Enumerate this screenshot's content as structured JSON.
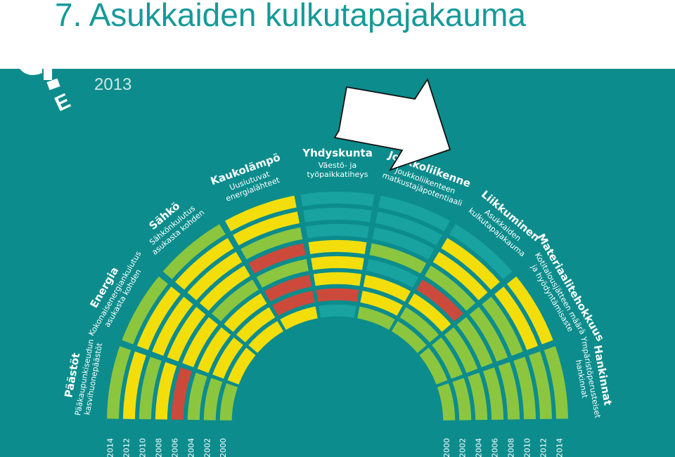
{
  "page": {
    "title": "7. Asukkaiden kulkutapajakauma",
    "logo_year": "2013"
  },
  "colors": {
    "background": "#0c8c8c",
    "track": "#18a3a0",
    "red": "#cc4a3c",
    "yellow": "#f3de0c",
    "lightgreen": "#8cc63f",
    "green": "#6fb14a",
    "title": "#159a98"
  },
  "chart_data": {
    "type": "radial-status",
    "legend": null,
    "years_left": [
      "2014",
      "2012",
      "2010",
      "2008",
      "2006",
      "2004",
      "2002",
      "2000"
    ],
    "years_right": [
      "2000",
      "2002",
      "2004",
      "2006",
      "2008",
      "2010",
      "2012",
      "2014"
    ],
    "rings_outer_to_inner": [
      "2014",
      "2012",
      "2010",
      "2008",
      "2006",
      "2004",
      "2002",
      "2000"
    ],
    "categories": [
      {
        "id": "paastot",
        "title": "Päästöt",
        "sub": [
          "Pääkaupunkiseudun",
          "kasvihuonepäästöt"
        ],
        "status": [
          "green",
          "yellow",
          "green",
          "yellow",
          "red",
          "green",
          "green",
          "green"
        ]
      },
      {
        "id": "energia",
        "title": "Energia",
        "sub": [
          "Kokonaisenergiankulutus",
          "asukasta kohden"
        ],
        "status": [
          "green",
          "yellow",
          "yellow",
          "yellow",
          "yellow",
          "yellow",
          "yellow",
          "yellow"
        ]
      },
      {
        "id": "sahko",
        "title": "Sähkö",
        "sub": [
          "Sähkönkulutus",
          "asukasta kohden"
        ],
        "status": [
          "green",
          "yellow",
          "yellow",
          "yellow",
          "green",
          "yellow",
          "yellow",
          "yellow"
        ]
      },
      {
        "id": "kaukolampo",
        "title": "Kaukolämpö",
        "sub": [
          "Uusiutuvat",
          "energialähteet"
        ],
        "status": [
          "yellow",
          "yellow",
          "green",
          "red",
          "green",
          "red",
          "red",
          "yellow"
        ]
      },
      {
        "id": "yhdyskunta",
        "title": "Yhdyskunta",
        "sub": [
          "Väestö- ja",
          "työpaikkatiheys"
        ],
        "status": [
          "none",
          "none",
          "none",
          "yellow",
          "yellow",
          "yellow",
          "red",
          "none"
        ]
      },
      {
        "id": "joukkoliikenne",
        "title": "Joukkoliikenne",
        "sub": [
          "Joukkoliikenteen",
          "matkustajäpotentiaali"
        ],
        "status": [
          "none",
          "none",
          "none",
          "green",
          "none",
          "yellow",
          "yellow",
          "green"
        ]
      },
      {
        "id": "liikkuminen",
        "title": "Liikkuminen",
        "sub": [
          "Asukkaiden",
          "kulkutapajakauma"
        ],
        "status": [
          "none",
          "yellow",
          "yellow",
          "green",
          "red",
          "yellow",
          "green",
          "green"
        ]
      },
      {
        "id": "materiaali",
        "title": "Materiaalitehokkuus",
        "sub": [
          "Kotitalousjätteen määrä",
          "ja hyödyntämisaste"
        ],
        "status": [
          "yellow",
          "yellow",
          "green",
          "green",
          "green",
          "green",
          "green",
          "green"
        ]
      },
      {
        "id": "hankinnat",
        "title": "Hankinnat",
        "sub": [
          "Ympäristöperusteiset",
          "hankinnat"
        ],
        "status": [
          "green",
          "green",
          "green",
          "green",
          "green",
          "green",
          "green",
          "green"
        ]
      }
    ]
  },
  "arrow": {
    "direction": "right"
  }
}
